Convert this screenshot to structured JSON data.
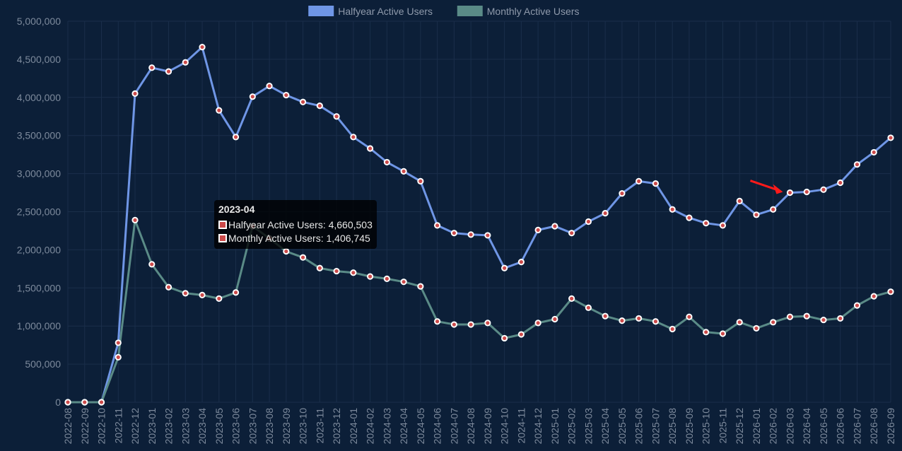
{
  "chart_data": {
    "type": "line",
    "categories": [
      "2022-08",
      "2022-09",
      "2022-10",
      "2022-11",
      "2022-12",
      "2023-01",
      "2023-02",
      "2023-03",
      "2023-04",
      "2023-05",
      "2023-06",
      "2023-07",
      "2023-08",
      "2023-09",
      "2023-10",
      "2023-11",
      "2023-12",
      "2024-01",
      "2024-02",
      "2024-03",
      "2024-04",
      "2024-05",
      "2024-06",
      "2024-07",
      "2024-08",
      "2024-09",
      "2024-10",
      "2024-11",
      "2024-12",
      "2025-01",
      "2025-02",
      "2025-03",
      "2025-04",
      "2025-05",
      "2025-06",
      "2025-07",
      "2025-08",
      "2025-09",
      "2025-10",
      "2025-11",
      "2025-12",
      "2026-01",
      "2026-02",
      "2026-03",
      "2026-04",
      "2026-05",
      "2026-06",
      "2026-07",
      "2026-08",
      "2026-09"
    ],
    "series": [
      {
        "name": "Halfyear Active Users",
        "color": "#6f96e6",
        "values": [
          0,
          0,
          0,
          780000,
          4050000,
          4390000,
          4340000,
          4460000,
          4660503,
          3830000,
          3480000,
          4010000,
          4150000,
          4030000,
          3940000,
          3890000,
          3750000,
          3480000,
          3330000,
          3150000,
          3030000,
          2900000,
          2320000,
          2220000,
          2200000,
          2190000,
          1760000,
          1840000,
          2260000,
          2310000,
          2220000,
          2370000,
          2480000,
          2740000,
          2900000,
          2870000,
          2530000,
          2420000,
          2350000,
          2320000,
          2640000,
          2460000,
          2530000,
          2750000,
          2760000,
          2790000,
          2880000,
          3120000,
          3280000,
          3470000
        ]
      },
      {
        "name": "Monthly Active Users",
        "color": "#5a8b87",
        "values": [
          0,
          0,
          0,
          590000,
          2390000,
          1810000,
          1510000,
          1430000,
          1406745,
          1360000,
          1440000,
          2310000,
          2150000,
          1980000,
          1900000,
          1760000,
          1720000,
          1700000,
          1650000,
          1620000,
          1580000,
          1520000,
          1060000,
          1020000,
          1020000,
          1040000,
          840000,
          890000,
          1040000,
          1090000,
          1360000,
          1240000,
          1130000,
          1070000,
          1100000,
          1060000,
          960000,
          1120000,
          920000,
          900000,
          1050000,
          970000,
          1050000,
          1120000,
          1130000,
          1080000,
          1100000,
          1270000,
          1390000,
          1450000
        ]
      }
    ],
    "yticks": [
      "0",
      "500,000",
      "1,000,000",
      "1,500,000",
      "2,000,000",
      "2,500,000",
      "3,000,000",
      "3,500,000",
      "4,000,000",
      "4,500,000",
      "5,000,000"
    ],
    "ylim": [
      0,
      5000000
    ],
    "title": "",
    "xlabel": "",
    "ylabel": "",
    "grid": true,
    "legend_position": "top-center",
    "background_color": "#0c1f38",
    "point_fill_color": "#cc4a4a",
    "tooltip": {
      "title": "2023-04",
      "lines": [
        "Halfyear Active Users: 4,660,503",
        "Monthly Active Users: 1,406,745"
      ]
    },
    "annotation": {
      "type": "arrow",
      "color": "#ff1a1a",
      "points_at": "2026-03"
    }
  }
}
